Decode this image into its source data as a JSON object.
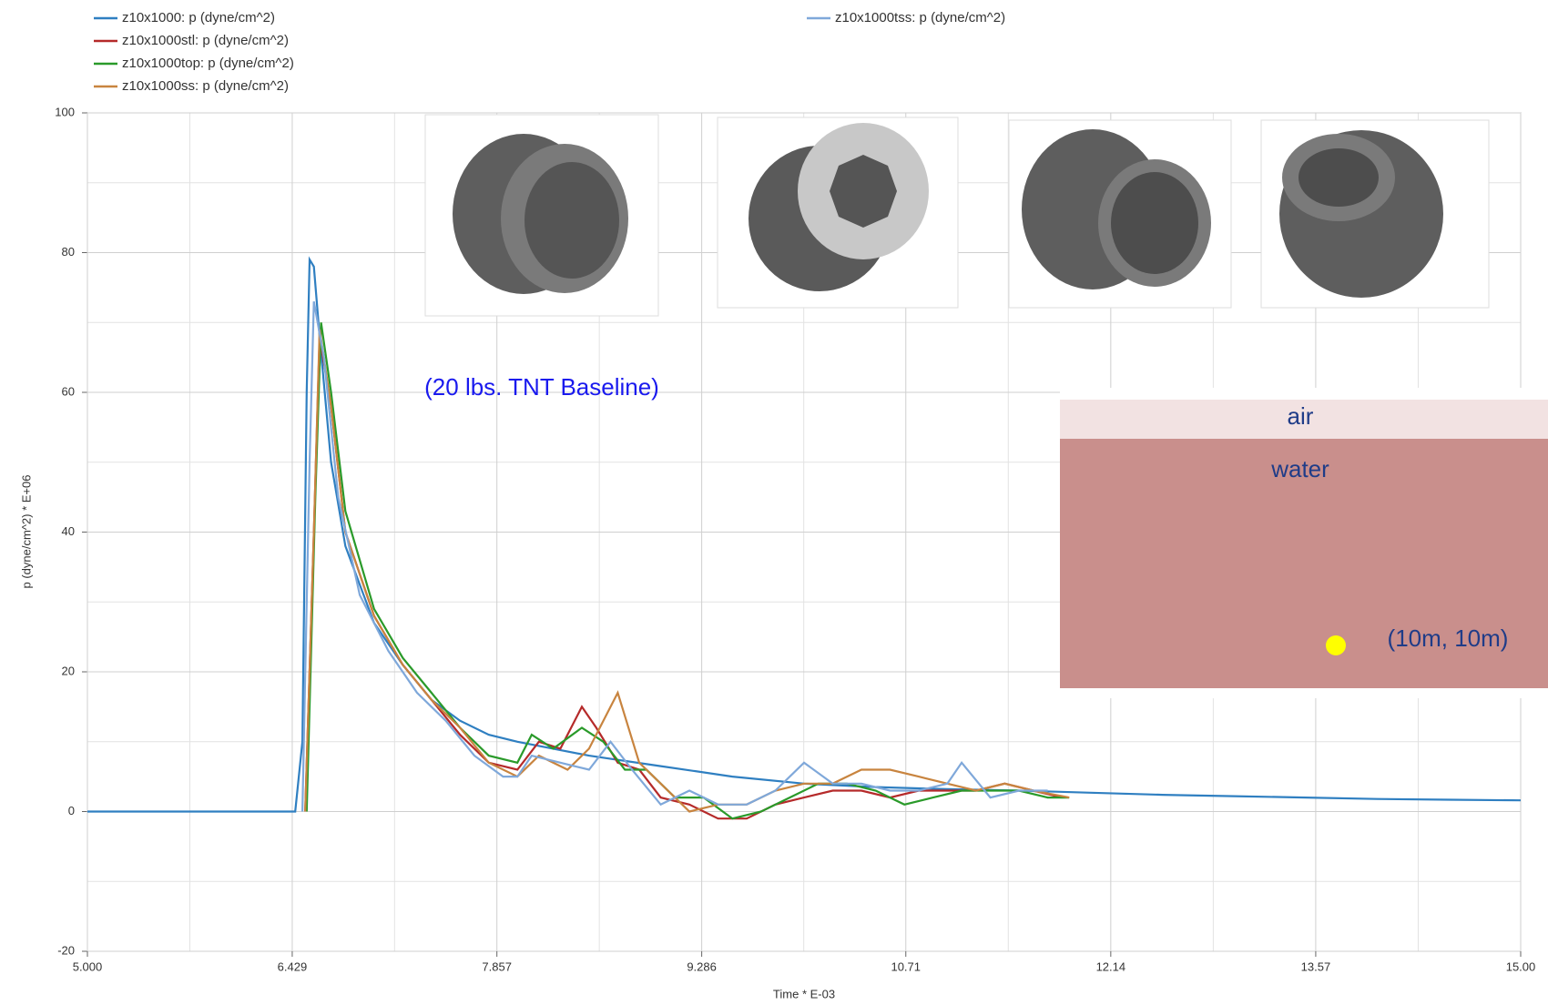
{
  "chart_data": {
    "type": "line",
    "x_label": "Time * E-03",
    "y_label": "p (dyne/cm^2) * E+06",
    "xlim": [
      5,
      15
    ],
    "ylim": [
      -20,
      100
    ],
    "xticks": [
      {
        "value": 5,
        "label": "5.000"
      },
      6.429,
      7.857,
      9.286,
      10.71,
      12.14,
      13.57,
      {
        "value": 15,
        "label": "15.00"
      }
    ],
    "yticks": [
      -20,
      0,
      20,
      40,
      60,
      80,
      100
    ],
    "grid": true,
    "annotations": [
      "(20 lbs. TNT Baseline)",
      "air",
      "water",
      "(10m, 10m)"
    ],
    "series": [
      {
        "name": "z10x1000: p (dyne/cm^2)",
        "color": "#2f7fc1",
        "x": [
          5,
          6.45,
          6.5,
          6.53,
          6.55,
          6.58,
          6.62,
          6.7,
          6.8,
          7.0,
          7.2,
          7.4,
          7.6,
          7.8,
          8.0,
          8.5,
          9.0,
          9.5,
          10.0,
          10.5,
          11.0,
          11.5,
          12.0,
          12.5,
          13.0,
          13.5,
          14.0,
          14.5,
          15.0
        ],
        "values": [
          0,
          0,
          10,
          60,
          79,
          78,
          68,
          50,
          38,
          27,
          21,
          16,
          13,
          11,
          10,
          8,
          6.5,
          5,
          4,
          3.5,
          3.2,
          3,
          2.7,
          2.4,
          2.2,
          2,
          1.8,
          1.7,
          1.6
        ]
      },
      {
        "name": "z10x1000stl: p (dyne/cm^2)",
        "color": "#b52a2a",
        "x": [
          6.52,
          6.58,
          6.62,
          6.7,
          6.8,
          7.0,
          7.2,
          7.4,
          7.6,
          7.8,
          8.0,
          8.15,
          8.3,
          8.45,
          8.55,
          8.7,
          8.85,
          9.0,
          9.2,
          9.4,
          9.6,
          9.8,
          10.0,
          10.2,
          10.4,
          10.6,
          10.8,
          11.0,
          11.2,
          11.4,
          11.6,
          11.8
        ],
        "values": [
          0,
          40,
          68,
          58,
          40,
          28,
          21,
          16,
          11,
          7,
          6,
          10,
          9,
          15,
          12,
          7,
          6,
          2,
          1,
          -1,
          -1,
          1,
          2,
          3,
          3,
          2,
          3,
          3,
          3,
          4,
          3,
          2
        ]
      },
      {
        "name": "z10x1000top: p (dyne/cm^2)",
        "color": "#2a9a2a",
        "x": [
          6.53,
          6.59,
          6.63,
          6.7,
          6.8,
          7.0,
          7.2,
          7.4,
          7.6,
          7.8,
          8.0,
          8.1,
          8.25,
          8.45,
          8.6,
          8.75,
          8.9,
          9.1,
          9.3,
          9.5,
          9.7,
          9.9,
          10.1,
          10.3,
          10.5,
          10.7,
          10.9,
          11.1,
          11.3,
          11.5,
          11.7,
          11.85
        ],
        "values": [
          0,
          45,
          70,
          60,
          43,
          29,
          22,
          17,
          12,
          8,
          7,
          11,
          9,
          12,
          10,
          6,
          6,
          2,
          2,
          -1,
          0,
          2,
          4,
          4,
          3,
          1,
          2,
          3,
          3,
          3,
          2,
          2
        ]
      },
      {
        "name": "z10x1000ss: p (dyne/cm^2)",
        "color": "#c8843f",
        "x": [
          6.52,
          6.58,
          6.62,
          6.7,
          6.8,
          7.0,
          7.2,
          7.4,
          7.6,
          7.8,
          8.0,
          8.15,
          8.35,
          8.5,
          8.7,
          8.85,
          9.0,
          9.2,
          9.4,
          9.6,
          9.8,
          10.0,
          10.2,
          10.4,
          10.6,
          10.8,
          11.0,
          11.2,
          11.4,
          11.6,
          11.85
        ],
        "values": [
          0,
          40,
          69,
          58,
          40,
          28,
          21,
          16,
          12,
          7,
          5,
          8,
          6,
          9,
          17,
          7,
          4,
          0,
          1,
          1,
          3,
          4,
          4,
          6,
          6,
          5,
          4,
          3,
          4,
          3,
          2
        ]
      },
      {
        "name": "z10x1000tss: p (dyne/cm^2)",
        "color": "#7fa8da",
        "x": [
          6.5,
          6.55,
          6.58,
          6.65,
          6.75,
          6.9,
          7.1,
          7.3,
          7.5,
          7.7,
          7.9,
          8.0,
          8.1,
          8.3,
          8.5,
          8.65,
          8.8,
          9.0,
          9.2,
          9.4,
          9.6,
          9.8,
          10.0,
          10.2,
          10.4,
          10.6,
          10.8,
          11.0,
          11.1,
          11.3,
          11.5,
          11.7
        ],
        "values": [
          0,
          50,
          73,
          65,
          45,
          31,
          23,
          17,
          13,
          8,
          5,
          5,
          8,
          7,
          6,
          10,
          6,
          1,
          3,
          1,
          1,
          3,
          7,
          4,
          4,
          3,
          3,
          4,
          7,
          2,
          3,
          3
        ]
      }
    ]
  }
}
